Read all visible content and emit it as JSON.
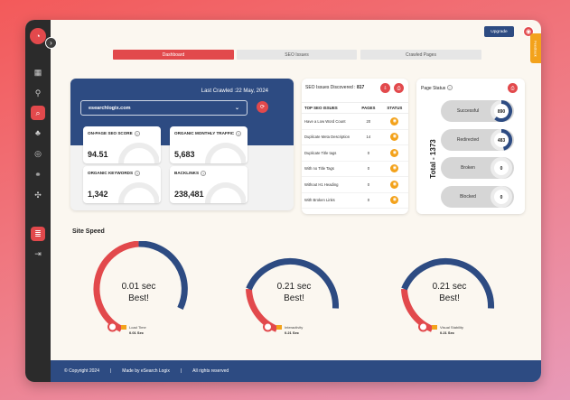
{
  "topbar": {
    "upgrade_label": "Upgrade",
    "feedback_label": "Feedback"
  },
  "tabs": [
    {
      "label": "Dashboard",
      "active": true
    },
    {
      "label": "SEO Issues",
      "active": false
    },
    {
      "label": "Crawled Pages",
      "active": false
    }
  ],
  "hero": {
    "last_crawled": "Last Crawled :22 May, 2024",
    "domain": "esearchlogix.com",
    "metrics": [
      {
        "title": "ON-PAGE SEO SCORE",
        "value": "94.51"
      },
      {
        "title": "ORGANIC MONTHLY TRAFFIC",
        "value": "5,683"
      },
      {
        "title": "ORGANIC KEYWORDS",
        "value": "1,342"
      },
      {
        "title": "BACKLINKS",
        "value": "238,481"
      }
    ]
  },
  "seo_issues": {
    "label": "SEO Issues Discovered :",
    "count": "817",
    "headers": [
      "TOP SEO ISSUES",
      "PAGES",
      "STATUS"
    ],
    "rows": [
      {
        "issue": "Have a Low Word Count",
        "pages": "20"
      },
      {
        "issue": "Duplicate Meta Description",
        "pages": "14"
      },
      {
        "issue": "Duplicate Title tags",
        "pages": "0"
      },
      {
        "issue": "With no Title Tags",
        "pages": "0"
      },
      {
        "issue": "Without H1 Heading",
        "pages": "0"
      },
      {
        "issue": "With Broken Links",
        "pages": "0"
      }
    ]
  },
  "page_status": {
    "title": "Page Status",
    "total": "Total - 1373",
    "items": [
      {
        "label": "Successful",
        "value": "890"
      },
      {
        "label": "Redirected",
        "value": "483"
      },
      {
        "label": "Broken",
        "value": "0"
      },
      {
        "label": "Blocked",
        "value": "0"
      }
    ]
  },
  "site_speed": {
    "title": "Site Speed",
    "gauges": [
      {
        "value": "0.01 sec",
        "rating": "Best!",
        "metric": "Load Time",
        "metric_value": "0.01 Sec"
      },
      {
        "value": "0.21 sec",
        "rating": "Best!",
        "metric": "Interactivity",
        "metric_value": "0.21 Sec"
      },
      {
        "value": "0.21 sec",
        "rating": "Best!",
        "metric": "Visual Stability",
        "metric_value": "0.21 Sec"
      }
    ]
  },
  "footer": {
    "copyright": "© Copyright 2024",
    "made_by": "Made by eSearch Logix",
    "rights": "All rights reserved"
  },
  "colors": {
    "brand_red": "#e2494c",
    "brand_blue": "#2d4b82",
    "accent_orange": "#f3a21b"
  }
}
